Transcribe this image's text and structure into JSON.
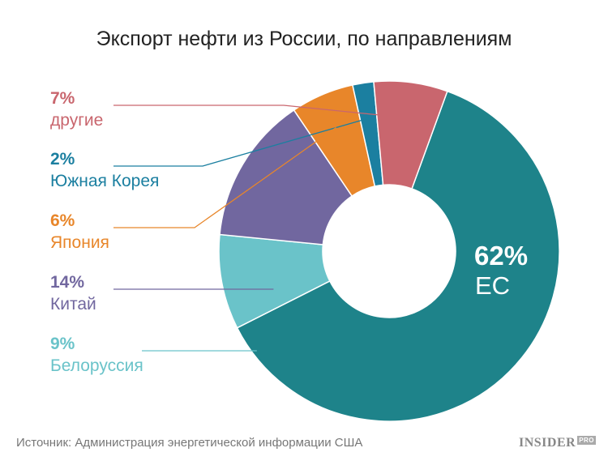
{
  "chart_data": {
    "type": "pie",
    "variant": "donut",
    "title": "Экспорт нефти из России, по направлениям",
    "slices": [
      {
        "label": "ЕС",
        "value": 62,
        "pct_text": "62%",
        "color": "#1e838a"
      },
      {
        "label": "Белоруссия",
        "value": 9,
        "pct_text": "9%",
        "color": "#6ac3c9"
      },
      {
        "label": "Китай",
        "value": 14,
        "pct_text": "14%",
        "color": "#71679f"
      },
      {
        "label": "Япония",
        "value": 6,
        "pct_text": "6%",
        "color": "#e8862a"
      },
      {
        "label": "Южная Корея",
        "value": 2,
        "pct_text": "2%",
        "color": "#1b7fa0"
      },
      {
        "label": "другие",
        "value": 7,
        "pct_text": "7%",
        "color": "#c9666e"
      }
    ],
    "label_colors": {
      "другие": "#c9666e",
      "Южная Корея": "#1b7fa0",
      "Япония": "#e8862a",
      "Китай": "#71679f",
      "Белоруссия": "#6ac3c9"
    }
  },
  "footer": {
    "source": "Источник: Администрация энергетической информации США",
    "logo_main": "INSIDER",
    "logo_sup": "PRO"
  }
}
